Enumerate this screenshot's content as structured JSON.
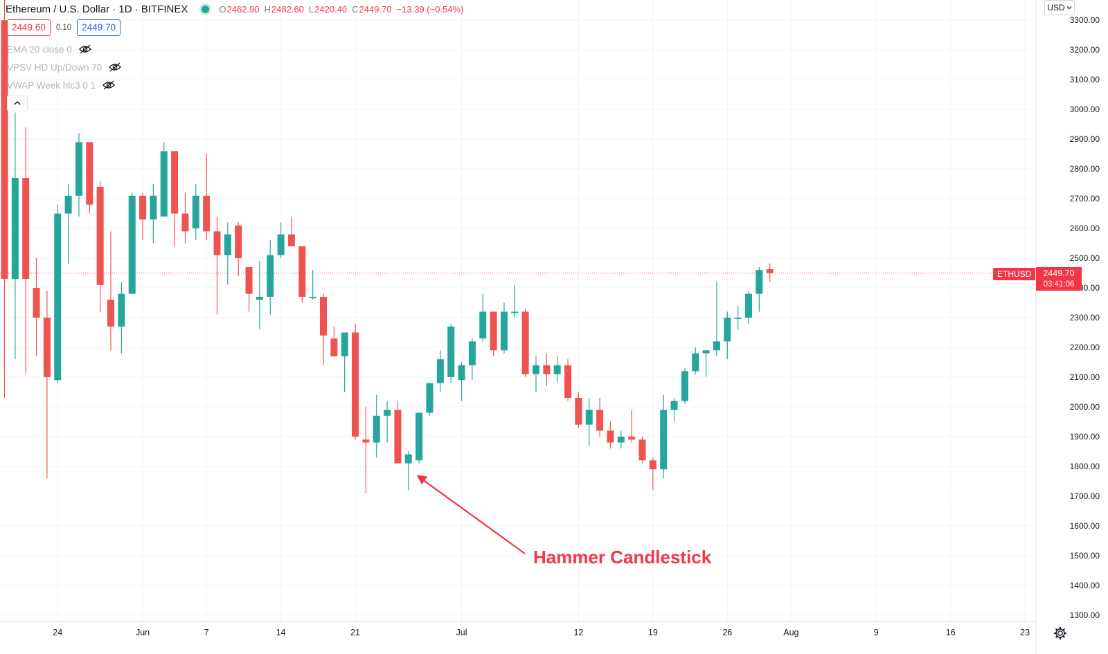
{
  "header": {
    "symbol_title": "Ethereum / U.S. Dollar · 1D · BITFINEX",
    "ohlc": [
      {
        "key": "O",
        "value": "2462.90"
      },
      {
        "key": "H",
        "value": "2482.60"
      },
      {
        "key": "L",
        "value": "2420.40"
      },
      {
        "key": "C",
        "value": "2449.70"
      },
      {
        "key": "",
        "value": "−13.39 (−0.54%)"
      }
    ],
    "status_color": "#26a69a"
  },
  "quote": {
    "bid": "2449.60",
    "spread": "0.10",
    "ask": "2449.70"
  },
  "indicators": [
    {
      "label": "EMA 20 close 0",
      "icon": "eye-hidden-icon"
    },
    {
      "label": "VPSV HD Up/Down 70",
      "icon": "eye-hidden-icon"
    },
    {
      "label": "VWAP Week hlc3 0 1",
      "icon": "eye-hidden-icon"
    }
  ],
  "controls": {
    "collapse_icon": "chevron-up-icon",
    "currency": "USD",
    "settings_icon": "gear-icon"
  },
  "price_scale": {
    "labels": [
      "3300.00",
      "3200.00",
      "3100.00",
      "3000.00",
      "2900.00",
      "2800.00",
      "2700.00",
      "2600.00",
      "2500.00",
      "2400.00",
      "2300.00",
      "2200.00",
      "2100.00",
      "2000.00",
      "1900.00",
      "1800.00",
      "1700.00",
      "1600.00",
      "1500.00",
      "1400.00",
      "1300.00"
    ]
  },
  "last_price": {
    "symbol": "ETHUSD",
    "price": "2449.70",
    "countdown": "03:41:06"
  },
  "annotation": {
    "text": "Hammer Candlestick",
    "color": "#f23645"
  },
  "colors": {
    "up": "#26a69a",
    "down": "#ef5350",
    "grid": "#f0f3fa",
    "last_price_line": "#f23645"
  },
  "chart_data": {
    "type": "candlestick",
    "y_range": [
      1270,
      3330
    ],
    "x_labels": [
      {
        "label": "24",
        "day_index": 5
      },
      {
        "label": "Jun",
        "day_index": 13
      },
      {
        "label": "7",
        "day_index": 19
      },
      {
        "label": "14",
        "day_index": 26
      },
      {
        "label": "21",
        "day_index": 33
      },
      {
        "label": "Jul",
        "day_index": 43
      },
      {
        "label": "12",
        "day_index": 54
      },
      {
        "label": "19",
        "day_index": 61
      },
      {
        "label": "26",
        "day_index": 68
      },
      {
        "label": "Aug",
        "day_index": 74
      },
      {
        "label": "9",
        "day_index": 82
      },
      {
        "label": "16",
        "day_index": 89
      },
      {
        "label": "23",
        "day_index": 96
      }
    ],
    "candles": [
      {
        "o": 3300,
        "h": 3460,
        "l": 2030,
        "c": 2430
      },
      {
        "o": 2430,
        "h": 2990,
        "l": 2160,
        "c": 2770
      },
      {
        "o": 2770,
        "h": 2940,
        "l": 2110,
        "c": 2430
      },
      {
        "o": 2400,
        "h": 2500,
        "l": 2170,
        "c": 2300
      },
      {
        "o": 2300,
        "h": 2390,
        "l": 1760,
        "c": 2100
      },
      {
        "o": 2090,
        "h": 2680,
        "l": 2080,
        "c": 2650
      },
      {
        "o": 2650,
        "h": 2750,
        "l": 2480,
        "c": 2710
      },
      {
        "o": 2710,
        "h": 2920,
        "l": 2640,
        "c": 2890
      },
      {
        "o": 2890,
        "h": 2890,
        "l": 2650,
        "c": 2680
      },
      {
        "o": 2740,
        "h": 2760,
        "l": 2320,
        "c": 2410
      },
      {
        "o": 2360,
        "h": 2590,
        "l": 2190,
        "c": 2270
      },
      {
        "o": 2270,
        "h": 2420,
        "l": 2180,
        "c": 2380
      },
      {
        "o": 2380,
        "h": 2720,
        "l": 2380,
        "c": 2710
      },
      {
        "o": 2710,
        "h": 2720,
        "l": 2560,
        "c": 2630
      },
      {
        "o": 2630,
        "h": 2750,
        "l": 2550,
        "c": 2710
      },
      {
        "o": 2640,
        "h": 2890,
        "l": 2640,
        "c": 2860
      },
      {
        "o": 2860,
        "h": 2860,
        "l": 2540,
        "c": 2650
      },
      {
        "o": 2650,
        "h": 2720,
        "l": 2550,
        "c": 2590
      },
      {
        "o": 2600,
        "h": 2750,
        "l": 2560,
        "c": 2710
      },
      {
        "o": 2710,
        "h": 2850,
        "l": 2560,
        "c": 2590
      },
      {
        "o": 2590,
        "h": 2640,
        "l": 2310,
        "c": 2510
      },
      {
        "o": 2510,
        "h": 2620,
        "l": 2410,
        "c": 2580
      },
      {
        "o": 2610,
        "h": 2620,
        "l": 2440,
        "c": 2500
      },
      {
        "o": 2470,
        "h": 2470,
        "l": 2320,
        "c": 2380
      },
      {
        "o": 2360,
        "h": 2490,
        "l": 2260,
        "c": 2370
      },
      {
        "o": 2370,
        "h": 2560,
        "l": 2310,
        "c": 2510
      },
      {
        "o": 2510,
        "h": 2620,
        "l": 2500,
        "c": 2580
      },
      {
        "o": 2580,
        "h": 2640,
        "l": 2540,
        "c": 2540
      },
      {
        "o": 2540,
        "h": 2540,
        "l": 2350,
        "c": 2370
      },
      {
        "o": 2370,
        "h": 2460,
        "l": 2360,
        "c": 2370
      },
      {
        "o": 2370,
        "h": 2380,
        "l": 2140,
        "c": 2240
      },
      {
        "o": 2230,
        "h": 2270,
        "l": 2170,
        "c": 2170
      },
      {
        "o": 2170,
        "h": 2250,
        "l": 2050,
        "c": 2250
      },
      {
        "o": 2250,
        "h": 2280,
        "l": 1890,
        "c": 1900
      },
      {
        "o": 1890,
        "h": 2000,
        "l": 1710,
        "c": 1880
      },
      {
        "o": 1880,
        "h": 2040,
        "l": 1830,
        "c": 1970
      },
      {
        "o": 1970,
        "h": 2020,
        "l": 1880,
        "c": 1990
      },
      {
        "o": 1990,
        "h": 2020,
        "l": 1810,
        "c": 1810
      },
      {
        "o": 1810,
        "h": 1850,
        "l": 1720,
        "c": 1840
      },
      {
        "o": 1820,
        "h": 1980,
        "l": 1810,
        "c": 1980
      },
      {
        "o": 1980,
        "h": 2080,
        "l": 1970,
        "c": 2080
      },
      {
        "o": 2080,
        "h": 2190,
        "l": 2050,
        "c": 2160
      },
      {
        "o": 2100,
        "h": 2280,
        "l": 2080,
        "c": 2270
      },
      {
        "o": 2090,
        "h": 2150,
        "l": 2020,
        "c": 2140
      },
      {
        "o": 2140,
        "h": 2230,
        "l": 2090,
        "c": 2220
      },
      {
        "o": 2230,
        "h": 2380,
        "l": 2220,
        "c": 2320
      },
      {
        "o": 2320,
        "h": 2320,
        "l": 2170,
        "c": 2190
      },
      {
        "o": 2190,
        "h": 2350,
        "l": 2180,
        "c": 2320
      },
      {
        "o": 2320,
        "h": 2410,
        "l": 2300,
        "c": 2320
      },
      {
        "o": 2320,
        "h": 2330,
        "l": 2100,
        "c": 2110
      },
      {
        "o": 2110,
        "h": 2170,
        "l": 2050,
        "c": 2140
      },
      {
        "o": 2140,
        "h": 2180,
        "l": 2070,
        "c": 2110
      },
      {
        "o": 2110,
        "h": 2170,
        "l": 2080,
        "c": 2140
      },
      {
        "o": 2140,
        "h": 2160,
        "l": 2020,
        "c": 2030
      },
      {
        "o": 2030,
        "h": 2050,
        "l": 1930,
        "c": 1940
      },
      {
        "o": 1940,
        "h": 2030,
        "l": 1870,
        "c": 1990
      },
      {
        "o": 1990,
        "h": 2030,
        "l": 1900,
        "c": 1920
      },
      {
        "o": 1920,
        "h": 1950,
        "l": 1860,
        "c": 1880
      },
      {
        "o": 1880,
        "h": 1920,
        "l": 1860,
        "c": 1900
      },
      {
        "o": 1900,
        "h": 1990,
        "l": 1880,
        "c": 1890
      },
      {
        "o": 1890,
        "h": 1900,
        "l": 1810,
        "c": 1820
      },
      {
        "o": 1820,
        "h": 1830,
        "l": 1720,
        "c": 1790
      },
      {
        "o": 1790,
        "h": 2040,
        "l": 1760,
        "c": 1990
      },
      {
        "o": 1990,
        "h": 2030,
        "l": 1950,
        "c": 2020
      },
      {
        "o": 2020,
        "h": 2130,
        "l": 2010,
        "c": 2120
      },
      {
        "o": 2120,
        "h": 2200,
        "l": 2110,
        "c": 2180
      },
      {
        "o": 2180,
        "h": 2190,
        "l": 2100,
        "c": 2190
      },
      {
        "o": 2190,
        "h": 2420,
        "l": 2170,
        "c": 2220
      },
      {
        "o": 2220,
        "h": 2320,
        "l": 2160,
        "c": 2300
      },
      {
        "o": 2300,
        "h": 2340,
        "l": 2260,
        "c": 2300
      },
      {
        "o": 2300,
        "h": 2390,
        "l": 2280,
        "c": 2380
      },
      {
        "o": 2380,
        "h": 2470,
        "l": 2320,
        "c": 2460
      },
      {
        "o": 2462.9,
        "h": 2482.6,
        "l": 2420.4,
        "c": 2449.7
      }
    ]
  }
}
